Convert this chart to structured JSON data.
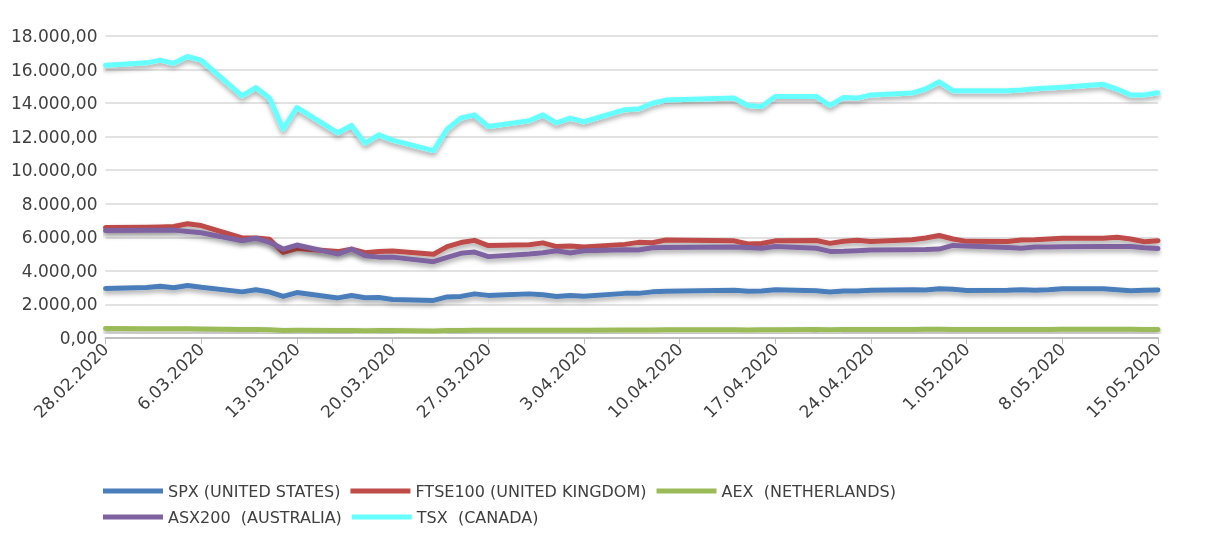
{
  "chart_data": {
    "type": "line",
    "x": [
      "2020-02-28",
      "2020-03-02",
      "2020-03-03",
      "2020-03-04",
      "2020-03-05",
      "2020-03-06",
      "2020-03-09",
      "2020-03-10",
      "2020-03-11",
      "2020-03-12",
      "2020-03-13",
      "2020-03-16",
      "2020-03-17",
      "2020-03-18",
      "2020-03-19",
      "2020-03-20",
      "2020-03-23",
      "2020-03-24",
      "2020-03-25",
      "2020-03-26",
      "2020-03-27",
      "2020-03-30",
      "2020-03-31",
      "2020-04-01",
      "2020-04-02",
      "2020-04-03",
      "2020-04-06",
      "2020-04-07",
      "2020-04-08",
      "2020-04-09",
      "2020-04-14",
      "2020-04-15",
      "2020-04-16",
      "2020-04-17",
      "2020-04-20",
      "2020-04-21",
      "2020-04-22",
      "2020-04-23",
      "2020-04-24",
      "2020-04-27",
      "2020-04-28",
      "2020-04-29",
      "2020-04-30",
      "2020-05-01",
      "2020-05-04",
      "2020-05-05",
      "2020-05-06",
      "2020-05-07",
      "2020-05-08",
      "2020-05-11",
      "2020-05-12",
      "2020-05-13",
      "2020-05-14",
      "2020-05-15"
    ],
    "series": [
      {
        "name": "SPX (UNITED STATES)",
        "color": "#4a7ebb",
        "values": [
          2950,
          3010,
          3080,
          3000,
          3130,
          3020,
          2750,
          2880,
          2740,
          2480,
          2710,
          2390,
          2530,
          2400,
          2410,
          2300,
          2240,
          2450,
          2480,
          2630,
          2540,
          2630,
          2580,
          2470,
          2530,
          2490,
          2660,
          2660,
          2750,
          2790,
          2850,
          2780,
          2800,
          2870,
          2820,
          2740,
          2800,
          2800,
          2840,
          2880,
          2860,
          2940,
          2910,
          2830,
          2840,
          2870,
          2850,
          2880,
          2930,
          2930,
          2870,
          2820,
          2850,
          2860
        ]
      },
      {
        "name": "FTSE100 (UNITED KINGDOM)",
        "color": "#be4b48",
        "values": [
          6580,
          6600,
          6620,
          6650,
          6810,
          6700,
          5960,
          5960,
          5880,
          5100,
          5330,
          5150,
          5290,
          5080,
          5150,
          5190,
          4990,
          5450,
          5690,
          5820,
          5510,
          5560,
          5670,
          5450,
          5480,
          5420,
          5580,
          5700,
          5680,
          5840,
          5790,
          5600,
          5630,
          5790,
          5810,
          5640,
          5770,
          5830,
          5750,
          5850,
          5960,
          6110,
          5900,
          5760,
          5750,
          5840,
          5850,
          5900,
          5940,
          5940,
          6000,
          5900,
          5740,
          5800
        ]
      },
      {
        "name": "AEX  (NETHERLANDS)",
        "color": "#9bbb59",
        "values": [
          560,
          555,
          555,
          550,
          550,
          540,
          500,
          505,
          490,
          450,
          460,
          440,
          450,
          430,
          440,
          440,
          420,
          440,
          450,
          460,
          455,
          460,
          465,
          455,
          460,
          455,
          475,
          475,
          480,
          485,
          485,
          480,
          485,
          490,
          500,
          490,
          500,
          505,
          505,
          510,
          515,
          520,
          510,
          505,
          505,
          510,
          505,
          510,
          515,
          515,
          520,
          515,
          510,
          510
        ]
      },
      {
        "name": "ASX200  (AUSTRALIA)",
        "color": "#7f63a1",
        "values": [
          6400,
          6420,
          6420,
          6430,
          6350,
          6270,
          5800,
          5950,
          5700,
          5300,
          5540,
          5000,
          5300,
          4900,
          4820,
          4820,
          4550,
          4800,
          5050,
          5120,
          4850,
          5000,
          5080,
          5200,
          5070,
          5200,
          5260,
          5250,
          5380,
          5390,
          5430,
          5400,
          5350,
          5450,
          5350,
          5160,
          5170,
          5200,
          5240,
          5260,
          5270,
          5300,
          5520,
          5480,
          5400,
          5350,
          5420,
          5420,
          5440,
          5460,
          5460,
          5460,
          5380,
          5330
        ]
      },
      {
        "name": "TSX  (CANADA)",
        "color": "#66ffff",
        "values": [
          16250,
          16400,
          16560,
          16370,
          16780,
          16560,
          14430,
          14930,
          14300,
          12450,
          13740,
          12230,
          12670,
          11610,
          12110,
          11790,
          11170,
          12450,
          13110,
          13300,
          12610,
          12950,
          13300,
          12820,
          13110,
          12890,
          13610,
          13650,
          13990,
          14180,
          14300,
          13860,
          13800,
          14400,
          14400,
          13860,
          14340,
          14300,
          14490,
          14600,
          14840,
          15270,
          14740,
          14740,
          14740,
          14780,
          14850,
          14900,
          14950,
          15120,
          14840,
          14490,
          14490,
          14620
        ]
      }
    ],
    "xlim": [
      "2020-02-28",
      "2020-05-15"
    ],
    "xticks": [
      {
        "value": "2020-02-28",
        "label": "28.02.2020"
      },
      {
        "value": "2020-03-06",
        "label": "6.03.2020"
      },
      {
        "value": "2020-03-13",
        "label": "13.03.2020"
      },
      {
        "value": "2020-03-20",
        "label": "20.03.2020"
      },
      {
        "value": "2020-03-27",
        "label": "27.03.2020"
      },
      {
        "value": "2020-04-03",
        "label": "3.04.2020"
      },
      {
        "value": "2020-04-10",
        "label": "10.04.2020"
      },
      {
        "value": "2020-04-17",
        "label": "17.04.2020"
      },
      {
        "value": "2020-04-24",
        "label": "24.04.2020"
      },
      {
        "value": "2020-05-01",
        "label": "1.05.2020"
      },
      {
        "value": "2020-05-08",
        "label": "8.05.2020"
      },
      {
        "value": "2020-05-15",
        "label": "15.05.2020"
      }
    ],
    "ylim": [
      0,
      18000
    ],
    "yticks": [
      {
        "value": 0,
        "label": "0,00"
      },
      {
        "value": 2000,
        "label": "2.000,00"
      },
      {
        "value": 4000,
        "label": "4.000,00"
      },
      {
        "value": 6000,
        "label": "6.000,00"
      },
      {
        "value": 8000,
        "label": "8.000,00"
      },
      {
        "value": 10000,
        "label": "10.000,00"
      },
      {
        "value": 12000,
        "label": "12.000,00"
      },
      {
        "value": 14000,
        "label": "14.000,00"
      },
      {
        "value": 16000,
        "label": "16.000,00"
      },
      {
        "value": 18000,
        "label": "18.000,00"
      }
    ],
    "grid": "y",
    "legend": "bottom",
    "marker": "none",
    "line_style": "solid"
  }
}
